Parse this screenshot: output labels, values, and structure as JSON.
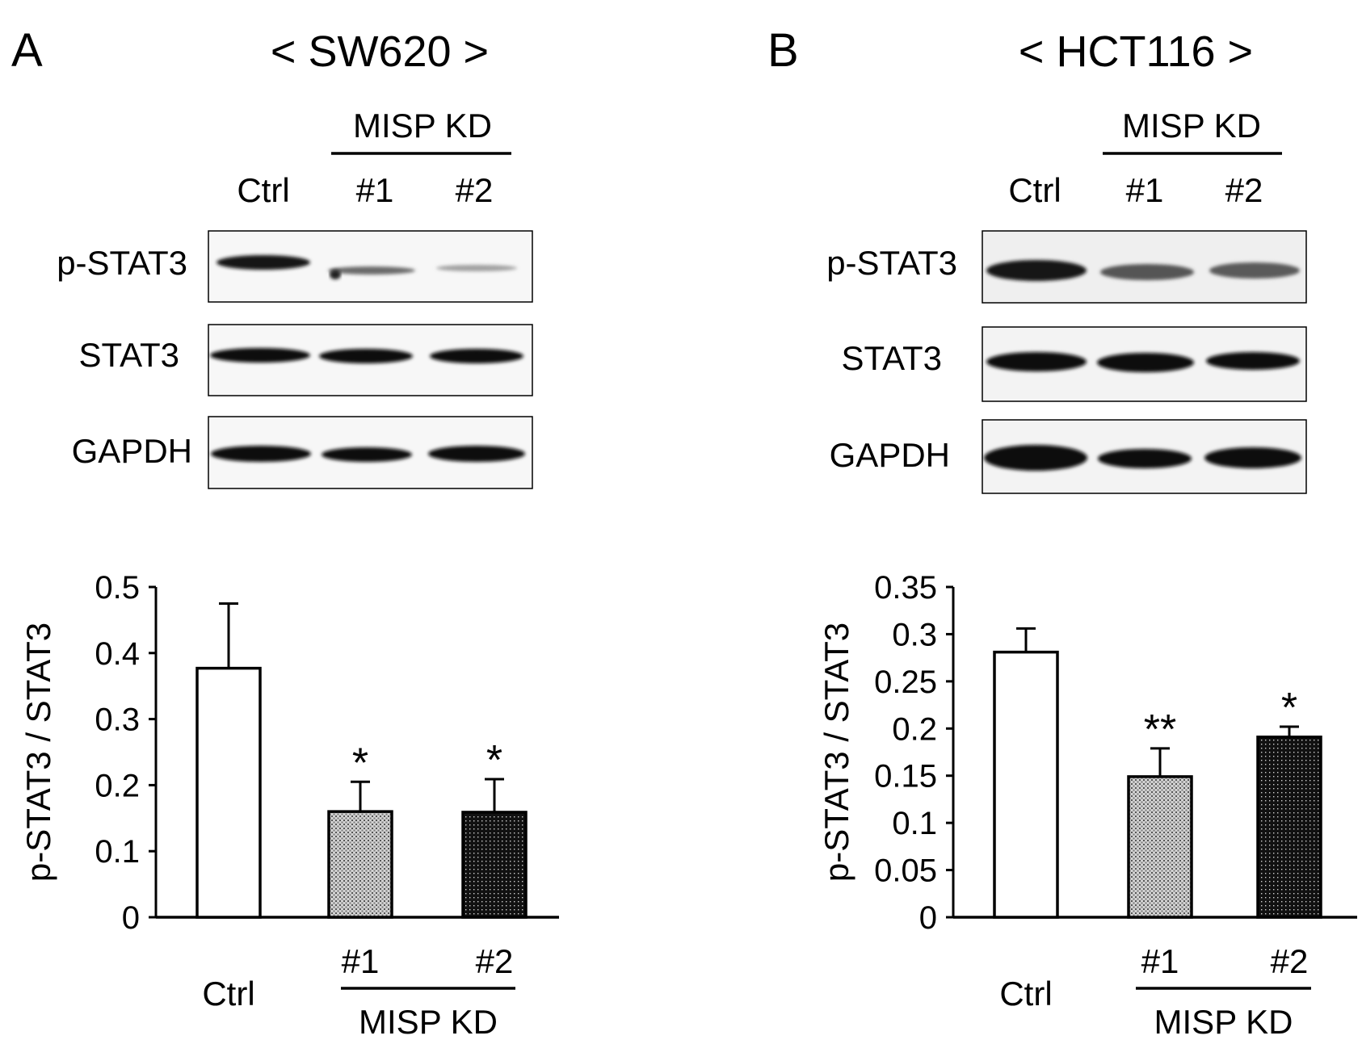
{
  "panels": [
    {
      "letter": "A",
      "cell_line": "< SW620 >",
      "group_label": "MISP KD",
      "lane_labels": [
        "Ctrl",
        "#1",
        "#2"
      ],
      "blot_rows": [
        "p-STAT3",
        "STAT3",
        "GAPDH"
      ]
    },
    {
      "letter": "B",
      "cell_line": "< HCT116 >",
      "group_label": "MISP KD",
      "lane_labels": [
        "Ctrl",
        "#1",
        "#2"
      ],
      "blot_rows": [
        "p-STAT3",
        "STAT3",
        "GAPDH"
      ]
    }
  ],
  "chart_data": [
    {
      "type": "bar",
      "categories": [
        "Ctrl",
        "#1",
        "#2"
      ],
      "group_label": "MISP KD",
      "values": [
        0.377,
        0.16,
        0.159
      ],
      "errors": [
        0.098,
        0.045,
        0.05
      ],
      "significance": [
        "",
        "*",
        "*"
      ],
      "fills": [
        "white",
        "light-dotted",
        "dark-dotted"
      ],
      "ylabel": "p-STAT3 / STAT3",
      "xlabel": "",
      "ylim": [
        0,
        0.5
      ],
      "yticks": [
        0,
        0.1,
        0.2,
        0.3,
        0.4,
        0.5
      ],
      "ytick_labels": [
        "0",
        "0.1",
        "0.2",
        "0.3",
        "0.4",
        "0.5"
      ],
      "grid": false,
      "legend": "none"
    },
    {
      "type": "bar",
      "categories": [
        "Ctrl",
        "#1",
        "#2"
      ],
      "group_label": "MISP KD",
      "values": [
        0.281,
        0.149,
        0.191
      ],
      "errors": [
        0.025,
        0.03,
        0.011
      ],
      "significance": [
        "",
        "**",
        "*"
      ],
      "fills": [
        "white",
        "light-dotted",
        "dark-dotted"
      ],
      "ylabel": "p-STAT3 / STAT3",
      "xlabel": "",
      "ylim": [
        0,
        0.35
      ],
      "yticks": [
        0,
        0.05,
        0.1,
        0.15,
        0.2,
        0.25,
        0.3,
        0.35
      ],
      "ytick_labels": [
        "0",
        "0.05",
        "0.1",
        "0.15",
        "0.2",
        "0.25",
        "0.3",
        "0.35"
      ],
      "grid": false,
      "legend": "none"
    }
  ]
}
